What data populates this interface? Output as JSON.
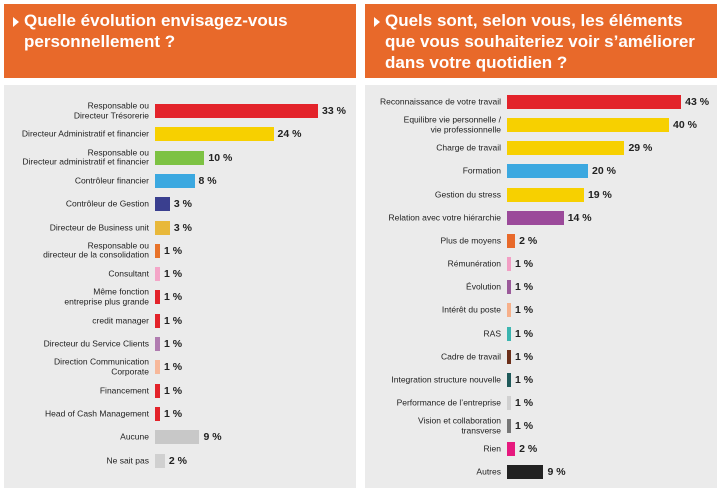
{
  "chart_data": [
    {
      "type": "bar",
      "orientation": "horizontal",
      "title": "Quelle évolution envisagez-vous personnellement ?",
      "categories": [
        "Responsable ou\nDirecteur Trésorerie",
        "Directeur Administratif et financier",
        "Responsable ou\nDirecteur administratif et financier",
        "Contrôleur financier",
        "Contrôleur de Gestion",
        "Directeur de Business unit",
        "Responsable ou\ndirecteur de la consolidation",
        "Consultant",
        "Même fonction\nentreprise plus grande",
        "credit manager",
        "Directeur du Service Clients",
        "Direction Communication\nCorporate",
        "Financement",
        "Head of Cash Management",
        "Aucune",
        "Ne sait pas"
      ],
      "values": [
        33,
        24,
        10,
        8,
        3,
        3,
        1,
        1,
        1,
        1,
        1,
        1,
        1,
        1,
        9,
        2
      ],
      "value_labels": [
        "33 %",
        "24 %",
        "10 %",
        "8 %",
        "3 %",
        "3 %",
        "1 %",
        "1 %",
        "1 %",
        "1 %",
        "1 %",
        "1 %",
        "1 %",
        "1 %",
        "9 %",
        "2 %"
      ],
      "colors": [
        "#e3232a",
        "#f7d000",
        "#7dc243",
        "#3ba8e0",
        "#3a3f8f",
        "#e8b83a",
        "#e8732a",
        "#f4a6c8",
        "#e3232a",
        "#e3232a",
        "#b07cb0",
        "#f7b89a",
        "#e3232a",
        "#e3232a",
        "#c8c8c8",
        "#d0d0d0"
      ]
    },
    {
      "type": "bar",
      "orientation": "horizontal",
      "title": "Quels sont, selon vous, les éléments que vous souhaiteriez voir s’améliorer dans votre quotidien ?",
      "categories": [
        "Reconnaissance de votre travail",
        "Equilibre vie personnelle /\nvie professionnelle",
        "Charge de travail",
        "Formation",
        "Gestion du stress",
        "Relation avec votre hiérarchie",
        "Plus de moyens",
        "Rémunération",
        "Évolution",
        "Intérêt du poste",
        "RAS",
        "Cadre de travail",
        "Integration structure nouvelle",
        "Performance de l’entreprise",
        "Vision et collaboration\ntransverse",
        "Rien",
        "Autres"
      ],
      "values": [
        43,
        40,
        29,
        20,
        19,
        14,
        2,
        1,
        1,
        1,
        1,
        1,
        1,
        1,
        1,
        2,
        9
      ],
      "value_labels": [
        "43 %",
        "40 %",
        "29 %",
        "20 %",
        "19 %",
        "14 %",
        "2 %",
        "1 %",
        "1 %",
        "1 %",
        "1 %",
        "1 %",
        "1 %",
        "1 %",
        "1 %",
        "2 %",
        "9 %"
      ],
      "colors": [
        "#e3232a",
        "#f7d000",
        "#f7d000",
        "#3ba8e0",
        "#f7d000",
        "#9b4a9a",
        "#e8692a",
        "#f29ec4",
        "#9b5a9a",
        "#f7b08a",
        "#3bb5b0",
        "#6b2f1a",
        "#1f5a5a",
        "#d0d0d0",
        "#777777",
        "#e6197e",
        "#222222"
      ]
    }
  ]
}
